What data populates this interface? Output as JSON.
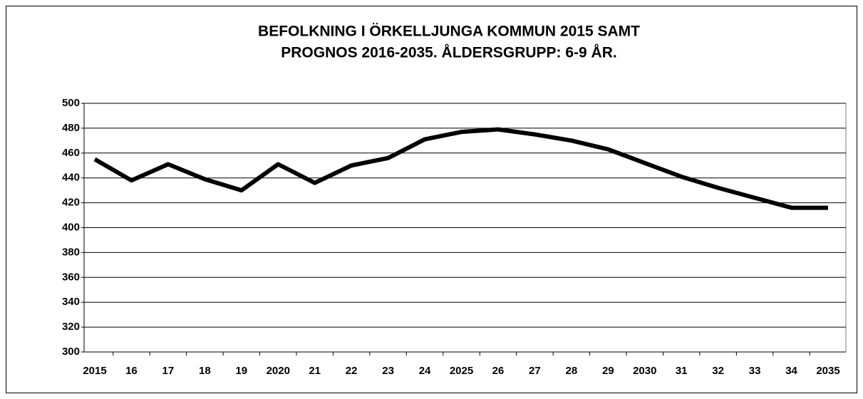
{
  "chart_data": {
    "type": "line",
    "title": "BEFOLKNING I ÖRKELLJUNGA KOMMUN 2015 SAMT",
    "subtitle": "PROGNOS 2016-2035. ÅLDERSGRUPP: 6-9 ÅR.",
    "categories": [
      "2015",
      "16",
      "17",
      "18",
      "19",
      "2020",
      "21",
      "22",
      "23",
      "24",
      "2025",
      "26",
      "27",
      "28",
      "29",
      "2030",
      "31",
      "32",
      "33",
      "34",
      "2035"
    ],
    "series": [
      {
        "color": "#000000",
        "values": [
          455,
          438,
          451,
          439,
          430,
          451,
          436,
          450,
          456,
          471,
          477,
          479,
          475,
          470,
          463,
          452,
          441,
          432,
          424,
          416,
          416
        ]
      }
    ],
    "ylim": [
      300,
      500
    ],
    "yticks": [
      300,
      320,
      340,
      360,
      380,
      400,
      420,
      440,
      460,
      480,
      500
    ],
    "grid": true
  }
}
